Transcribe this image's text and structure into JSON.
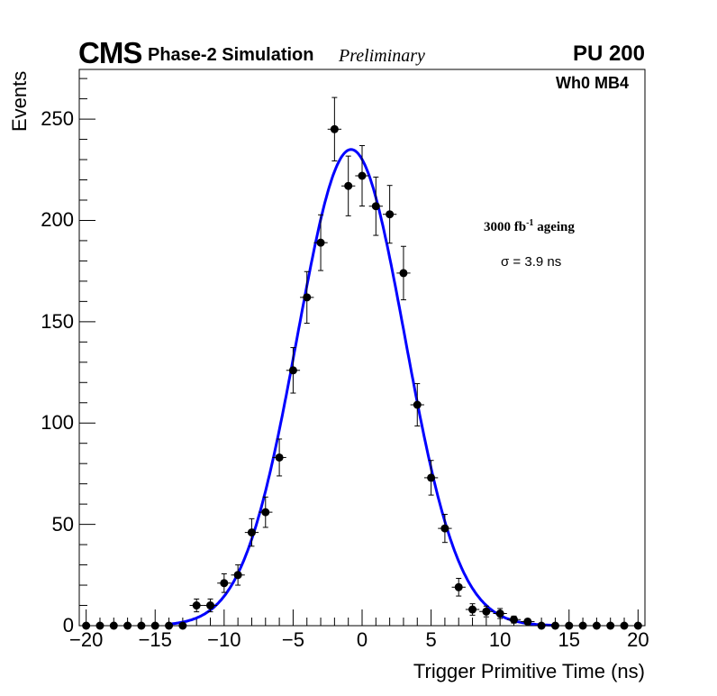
{
  "header": {
    "experiment": "CMS",
    "subtitle": "Phase-2 Simulation",
    "status": "Preliminary",
    "pileup": "PU 200"
  },
  "annotations": {
    "region": "Wh0 MB4",
    "ageing_prefix": "3000 fb",
    "ageing_sup": "-1",
    "ageing_suffix": " ageing",
    "sigma": "σ = 3.9 ns"
  },
  "chart_data": {
    "type": "scatter",
    "title": "",
    "xlabel": "Trigger Primitive Time (ns)",
    "ylabel": "Events",
    "xlim": [
      -20.5,
      20.5
    ],
    "ylim": [
      0,
      274.5
    ],
    "xticks": [
      -20,
      -15,
      -10,
      -5,
      0,
      5,
      10,
      15,
      20
    ],
    "xtick_labels": [
      "−20",
      "−15",
      "−10",
      "−5",
      "0",
      "5",
      "10",
      "15",
      "20"
    ],
    "yticks": [
      0,
      50,
      100,
      150,
      200,
      250
    ],
    "ytick_labels": [
      "0",
      "50",
      "100",
      "150",
      "200",
      "250"
    ],
    "grid": false,
    "series": [
      {
        "name": "Simulation",
        "x": [
          -20,
          -19,
          -18,
          -17,
          -16,
          -15,
          -14,
          -13,
          -12,
          -11,
          -10,
          -9,
          -8,
          -7,
          -6,
          -5,
          -4,
          -3,
          -2,
          -1,
          0,
          1,
          2,
          3,
          4,
          5,
          6,
          7,
          8,
          9,
          10,
          11,
          12,
          13,
          14,
          15,
          16,
          17,
          18,
          19,
          20
        ],
        "y": [
          0,
          0,
          0,
          0,
          0,
          0,
          0,
          0,
          10,
          10,
          21,
          25,
          46,
          56,
          83,
          126,
          162,
          189,
          245,
          217,
          222,
          207,
          203,
          174,
          109,
          73,
          48,
          19,
          8,
          7,
          6,
          3,
          2,
          0,
          0,
          0,
          0,
          0,
          0,
          0,
          0
        ],
        "xerr": 0.5,
        "yerr": "sqrt(N)",
        "color": "#000000"
      }
    ],
    "fit": {
      "type": "gaussian",
      "amplitude": 235,
      "mean": -0.8,
      "sigma": 3.9,
      "color": "#0000ff"
    }
  }
}
